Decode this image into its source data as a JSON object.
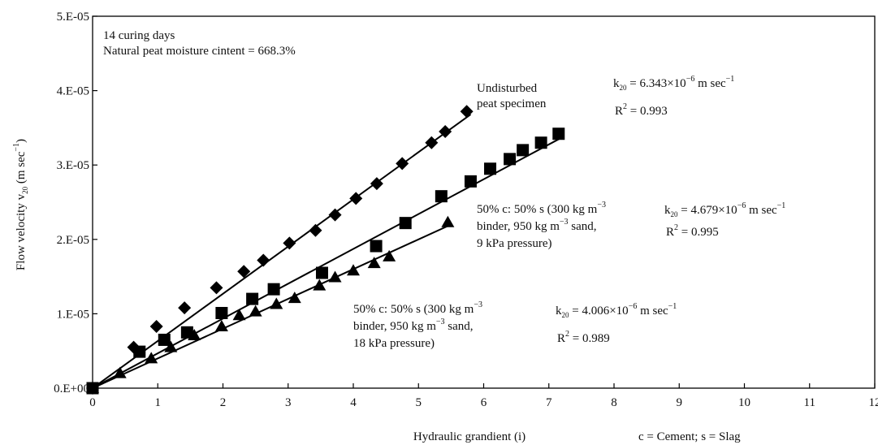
{
  "chart_data": {
    "type": "scatter",
    "xlabel": "Hydraulic grandient (i)",
    "ylabel_main": "Flow velocity v",
    "ylabel_sub": "20",
    "ylabel_unit": " (m sec",
    "ylabel_unit_sup": "−1",
    "ylabel_close": ")",
    "xlim": [
      0,
      12
    ],
    "ylim": [
      0,
      5e-05
    ],
    "x_ticks": [
      0,
      1,
      2,
      3,
      4,
      5,
      6,
      7,
      8,
      9,
      10,
      11,
      12
    ],
    "y_ticks": [
      {
        "value": 0,
        "label": "0.E+00"
      },
      {
        "value": 1e-05,
        "label": "1.E-05"
      },
      {
        "value": 2e-05,
        "label": "2.E-05"
      },
      {
        "value": 3e-05,
        "label": "3.E-05"
      },
      {
        "value": 4e-05,
        "label": "4.E-05"
      },
      {
        "value": 5e-05,
        "label": "5.E-05"
      }
    ],
    "grid": false,
    "header_lines": [
      "14 curing days",
      "Natural peat moisture cintent = 668.3%"
    ],
    "footnote": "c = Cement; s = Slag",
    "series": [
      {
        "marker": "diamond",
        "label_lines": [
          "Undisturbed",
          "peat specimen"
        ],
        "k_text": "6.343×10",
        "k_exp": "−6",
        "r2_text": " = 0.993",
        "x": [
          0,
          0.63,
          0.98,
          1.41,
          1.9,
          2.32,
          2.62,
          3.02,
          3.42,
          3.72,
          4.04,
          4.36,
          4.75,
          5.2,
          5.41,
          5.74
        ],
        "y": [
          0,
          5.5e-06,
          8.3e-06,
          1.08e-05,
          1.35e-05,
          1.57e-05,
          1.72e-05,
          1.95e-05,
          2.12e-05,
          2.33e-05,
          2.55e-05,
          2.75e-05,
          3.02e-05,
          3.3e-05,
          3.45e-05,
          3.72e-05
        ],
        "fit_x": [
          0,
          5.8
        ],
        "fit_y": [
          0,
          3.68e-05
        ]
      },
      {
        "marker": "square",
        "label_lines": [
          "50% c: 50% s (300 kg m",
          "binder, 950 kg m",
          "9 kPa pressure)"
        ],
        "label_sups": [
          "−3",
          "−3",
          ""
        ],
        "label_tails": [
          "",
          " sand,",
          ""
        ],
        "k_text": "4.679×10",
        "k_exp": "−6",
        "r2_text": " = 0.995",
        "x": [
          0,
          0.72,
          1.1,
          1.45,
          1.98,
          2.45,
          2.78,
          3.52,
          4.35,
          4.8,
          5.35,
          5.8,
          6.1,
          6.4,
          6.6,
          6.88,
          7.15
        ],
        "y": [
          0,
          4.9e-06,
          6.5e-06,
          7.5e-06,
          1.01e-05,
          1.2e-05,
          1.33e-05,
          1.55e-05,
          1.91e-05,
          2.22e-05,
          2.58e-05,
          2.78e-05,
          2.95e-05,
          3.08e-05,
          3.2e-05,
          3.3e-05,
          3.42e-05
        ],
        "fit_x": [
          0,
          7.2
        ],
        "fit_y": [
          0,
          3.37e-05
        ]
      },
      {
        "marker": "triangle",
        "label_lines": [
          "50% c: 50% s (300 kg m",
          "binder, 950 kg m",
          "18 kPa pressure)"
        ],
        "label_sups": [
          "−3",
          "−3",
          ""
        ],
        "label_tails": [
          "",
          " sand,",
          ""
        ],
        "k_text": "4.006×10",
        "k_exp": "−6",
        "r2_text": " = 0.989",
        "x": [
          0,
          0.42,
          0.9,
          1.2,
          1.56,
          1.98,
          2.25,
          2.5,
          2.82,
          3.1,
          3.48,
          3.72,
          4.0,
          4.32,
          4.55,
          5.45
        ],
        "y": [
          0,
          2e-06,
          4e-06,
          5.5e-06,
          7.1e-06,
          8.3e-06,
          9.8e-06,
          1.03e-05,
          1.13e-05,
          1.21e-05,
          1.38e-05,
          1.49e-05,
          1.58e-05,
          1.68e-05,
          1.77e-05,
          2.23e-05
        ],
        "fit_x": [
          0,
          5.5
        ],
        "fit_y": [
          0,
          2.2e-05
        ]
      }
    ]
  }
}
